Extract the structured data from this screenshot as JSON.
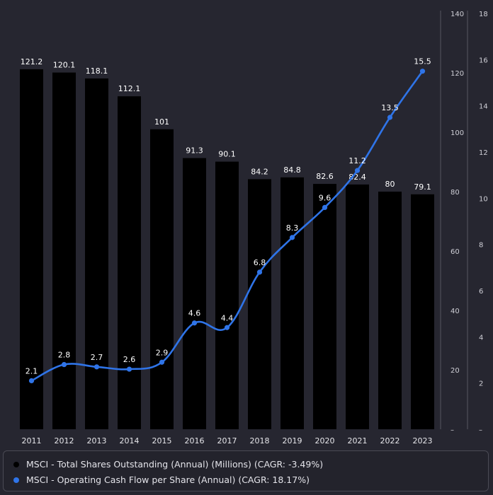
{
  "chart_data": {
    "type": "bar",
    "categories": [
      "2011",
      "2012",
      "2013",
      "2014",
      "2015",
      "2016",
      "2017",
      "2018",
      "2019",
      "2020",
      "2021",
      "2022",
      "2023"
    ],
    "series": [
      {
        "name": "MSCI - Total Shares Outstanding (Annual) (Millions) (CAGR: -3.49%)",
        "type": "bar",
        "axis": "right-inner",
        "color": "#000000",
        "values": [
          121.2,
          120.1,
          118.1,
          112.1,
          101,
          91.3,
          90.1,
          84.2,
          84.8,
          82.6,
          82.4,
          80,
          79.1
        ]
      },
      {
        "name": "MSCI - Operating Cash Flow per Share (Annual) (CAGR: 18.17%)",
        "type": "line",
        "axis": "right-outer",
        "color": "#2f74e8",
        "values": [
          2.1,
          2.8,
          2.7,
          2.6,
          2.9,
          4.6,
          4.4,
          6.8,
          8.3,
          9.6,
          11.2,
          13.5,
          15.5
        ]
      }
    ],
    "y_axis_inner": {
      "ylim": [
        0,
        140
      ],
      "ticks": [
        "20",
        "40",
        "60",
        "80",
        "100",
        "120",
        "140"
      ]
    },
    "y_axis_outer": {
      "ylim": [
        0,
        18
      ],
      "ticks": [
        "2",
        "4",
        "6",
        "8",
        "10",
        "12",
        "14",
        "16",
        "18"
      ]
    },
    "grid": false,
    "legend_position": "bottom"
  },
  "legend": [
    {
      "label": "MSCI - Total Shares Outstanding (Annual) (Millions) (CAGR: -3.49%)",
      "color": "#000000"
    },
    {
      "label": "MSCI - Operating Cash Flow per Share (Annual) (CAGR: 18.17%)",
      "color": "#2f74e8"
    }
  ]
}
